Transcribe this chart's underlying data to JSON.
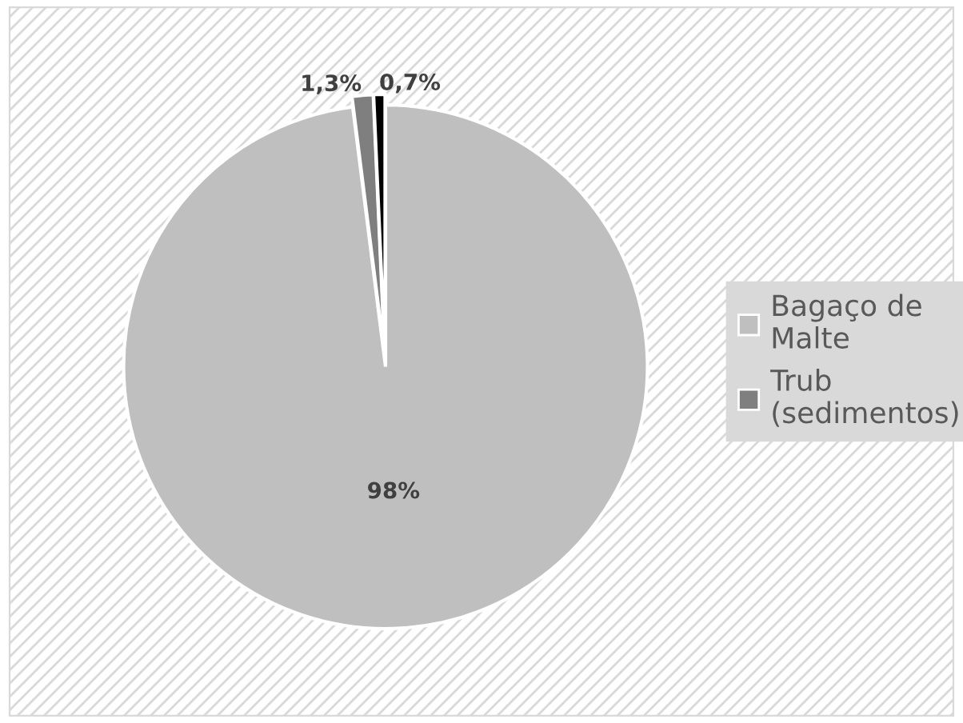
{
  "chart_data": {
    "type": "pie",
    "categories": [
      "Bagaço de Malte",
      "Trub (sedimentos)",
      null
    ],
    "values": [
      98,
      1.3,
      0.7
    ],
    "colors": [
      "#bfbfbf",
      "#7f7f7f",
      "#000000"
    ],
    "value_labels": [
      "98%",
      "1,3%",
      "0,7%"
    ],
    "legend": "right"
  }
}
